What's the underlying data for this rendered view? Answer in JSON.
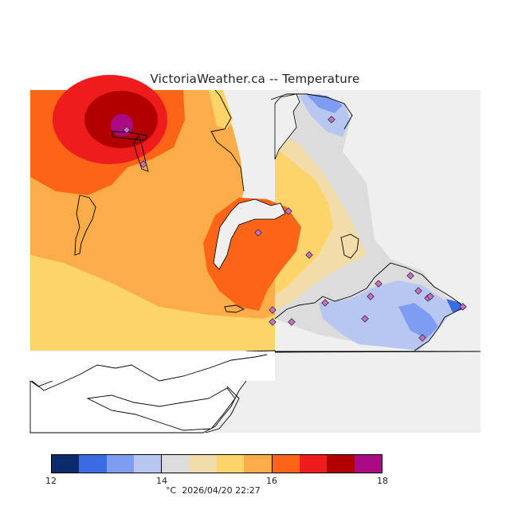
{
  "title": "VictoriaWeather.ca -- Temperature",
  "legend": {
    "min": 12,
    "max": 18,
    "ticks": [
      "12",
      "14",
      "16",
      "18"
    ],
    "bins": [
      {
        "from": 12.0,
        "to": 12.5,
        "color": "#0c2a6a"
      },
      {
        "from": 12.5,
        "to": 13.0,
        "color": "#3a6be0"
      },
      {
        "from": 13.0,
        "to": 13.5,
        "color": "#7d9df0"
      },
      {
        "from": 13.5,
        "to": 14.0,
        "color": "#b8c6f2"
      },
      {
        "from": 14.0,
        "to": 14.5,
        "color": "#dcdcdc"
      },
      {
        "from": 14.5,
        "to": 15.0,
        "color": "#f2dcaa"
      },
      {
        "from": 15.0,
        "to": 15.5,
        "color": "#fdd46a"
      },
      {
        "from": 15.5,
        "to": 16.0,
        "color": "#fcac48"
      },
      {
        "from": 16.0,
        "to": 16.5,
        "color": "#fc6418"
      },
      {
        "from": 16.5,
        "to": 17.0,
        "color": "#ee1c1c"
      },
      {
        "from": 17.0,
        "to": 17.5,
        "color": "#b20000"
      },
      {
        "from": 17.5,
        "to": 18.0,
        "color": "#aa0a84"
      }
    ]
  },
  "footer": {
    "unit": "°C",
    "timestamp": "2026/04/20 22:27"
  }
}
